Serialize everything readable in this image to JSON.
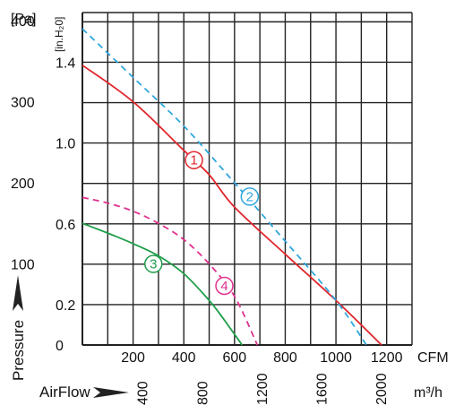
{
  "chart_data": {
    "type": "line",
    "xlabel": "AirFlow",
    "ylabel": "Pressure",
    "x_unit_primary": "CFM",
    "x_unit_secondary": "m³/h",
    "y_unit_primary": "[Pa]",
    "y_unit_secondary": "[in.H₂0]",
    "xlim": [
      0,
      1300
    ],
    "ylim_pa": [
      0,
      400
    ],
    "x_ticks_cfm": [
      200,
      400,
      600,
      800,
      1000,
      1200
    ],
    "x_tick_labels_cfm": [
      "200",
      "400",
      "600",
      "800",
      "1000",
      "1200"
    ],
    "x_ticks_m3h": [
      400,
      800,
      1200,
      1600,
      2000
    ],
    "x_tick_labels_m3h": [
      "400",
      "800",
      "1200",
      "1600",
      "2000"
    ],
    "y_ticks_pa": [
      100,
      200,
      300,
      400
    ],
    "y_tick_labels_pa": [
      "100",
      "200",
      "300",
      "400"
    ],
    "y_ticks_inh2o": [
      0,
      0.2,
      0.6,
      1.0,
      1.4
    ],
    "y_tick_labels_inh2o": [
      "0",
      "0.2",
      "0.6",
      "1.0",
      "1.4"
    ],
    "grid": true,
    "series": [
      {
        "name": "1",
        "color": "#e0262b",
        "dash": "solid",
        "x": [
          0,
          200,
          400,
          500,
          600,
          800,
          1000,
          1180
        ],
        "y": [
          345,
          300,
          240,
          210,
          170,
          112,
          55,
          0
        ]
      },
      {
        "name": "2",
        "color": "#2fa6dc",
        "dash": "dashed",
        "x": [
          0,
          200,
          400,
          600,
          800,
          1000,
          1120
        ],
        "y": [
          390,
          330,
          270,
          200,
          128,
          55,
          0
        ]
      },
      {
        "name": "3",
        "color": "#1f9e4a",
        "dash": "solid",
        "x": [
          0,
          100,
          200,
          300,
          400,
          500,
          550,
          630
        ],
        "y": [
          150,
          138,
          125,
          110,
          88,
          55,
          35,
          0
        ]
      },
      {
        "name": "4",
        "color": "#e0328f",
        "dash": "dashed",
        "x": [
          0,
          100,
          200,
          300,
          400,
          500,
          600,
          690
        ],
        "y": [
          182,
          175,
          165,
          150,
          130,
          100,
          60,
          0
        ]
      }
    ]
  }
}
